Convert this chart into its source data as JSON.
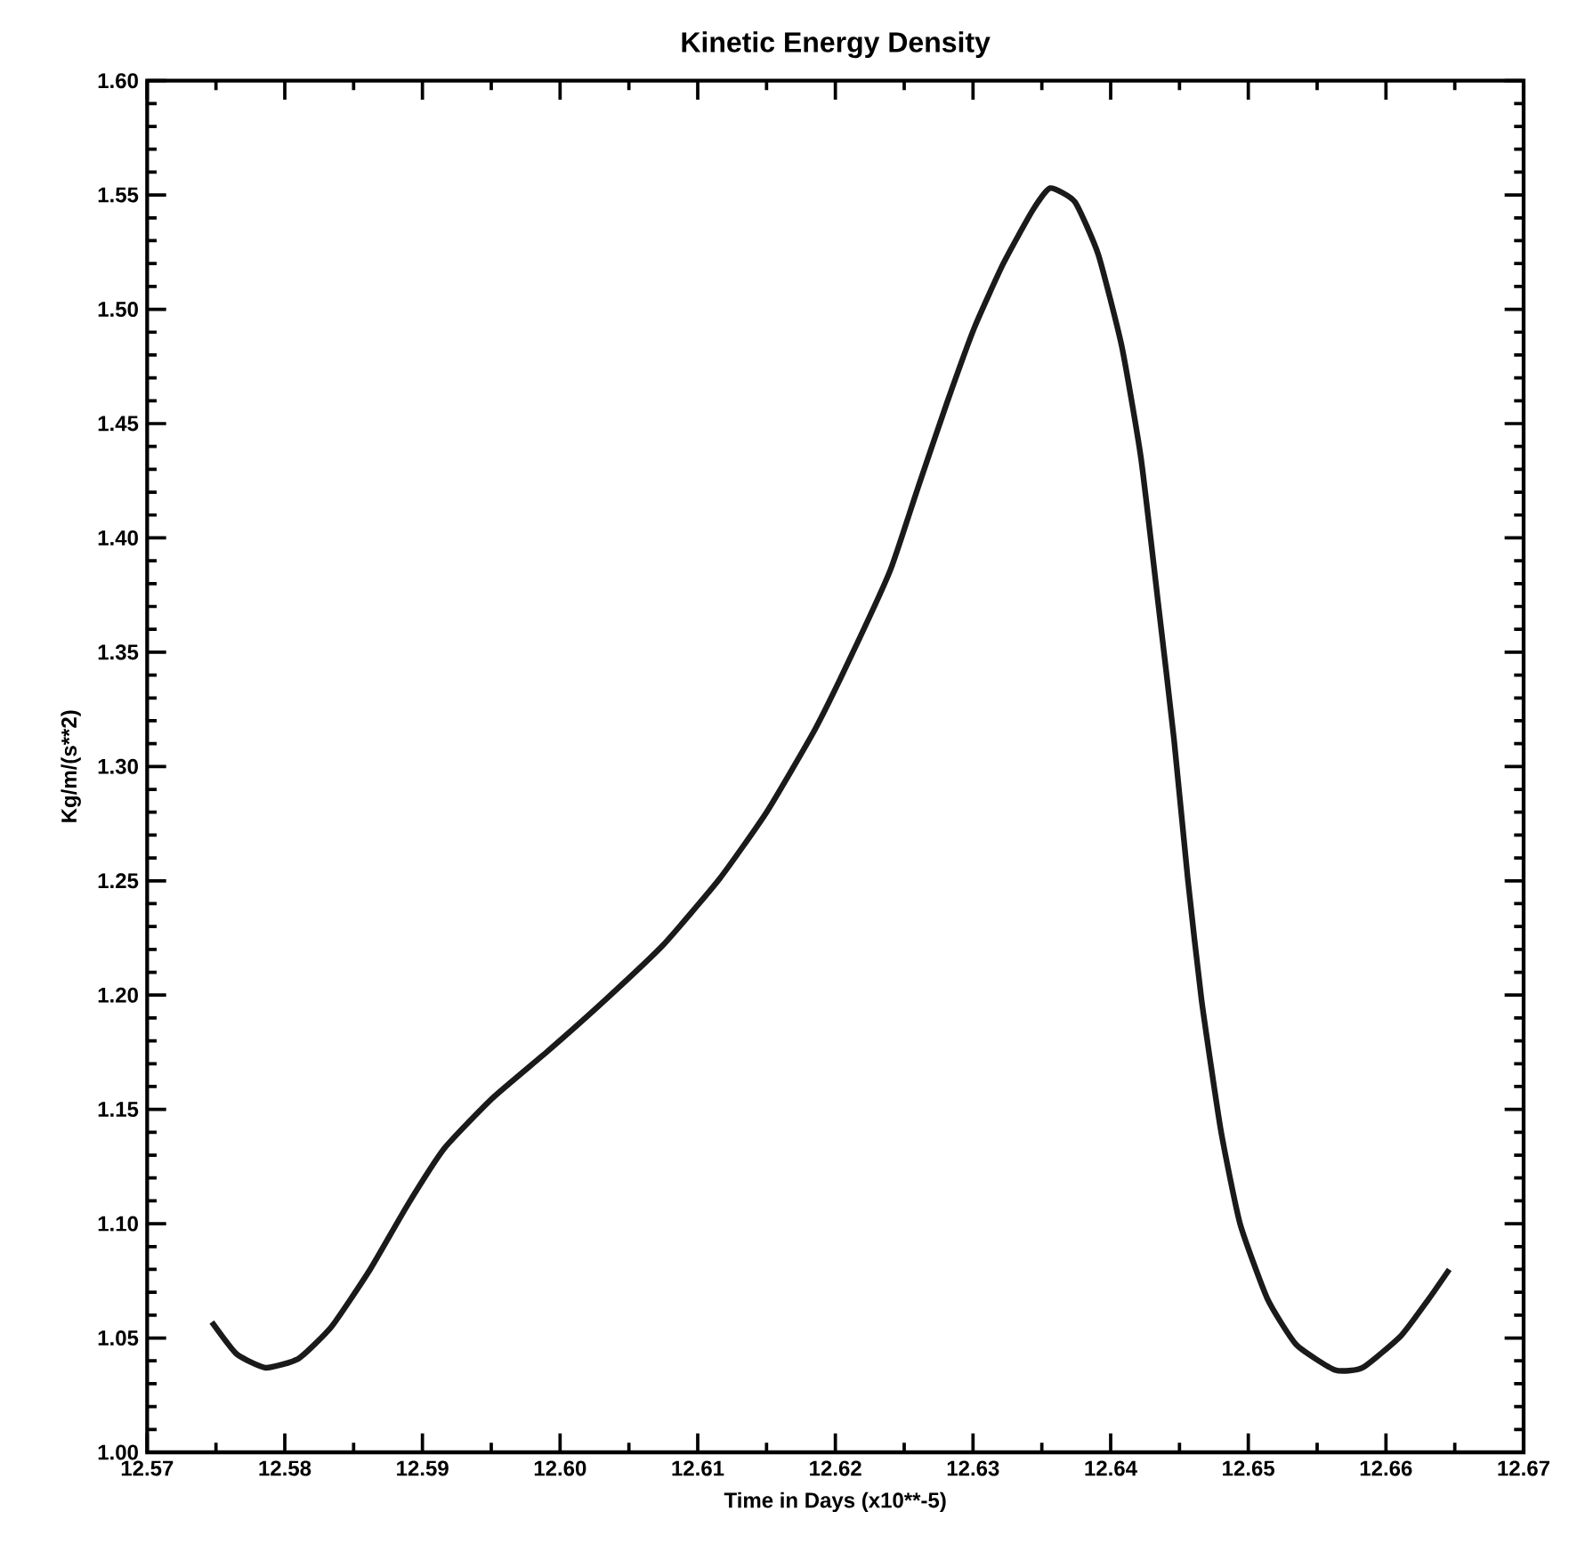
{
  "chart_data": {
    "type": "line",
    "title": "Kinetic Energy Density",
    "xlabel": "Time in Days (x10**-5)",
    "ylabel": "Kg/m/(s**2)",
    "xlim": [
      12.57,
      12.67
    ],
    "xticks": [
      12.57,
      12.58,
      12.59,
      {
        "value": 12.6,
        "label": "12.60"
      },
      12.61,
      12.62,
      12.63,
      12.64,
      12.65,
      12.66,
      12.67
    ],
    "ylim": [
      1.0,
      1.6
    ],
    "yticks": [
      {
        "value": 1.0,
        "label": "1.00"
      },
      1.05,
      {
        "value": 1.1,
        "label": "1.10"
      },
      1.15,
      {
        "value": 1.2,
        "label": "1.20"
      },
      1.25,
      {
        "value": 1.3,
        "label": "1.30"
      },
      1.35,
      {
        "value": 1.4,
        "label": "1.40"
      },
      1.45,
      {
        "value": 1.5,
        "label": "1.50"
      },
      1.55,
      {
        "value": 1.6,
        "label": "1.60"
      }
    ],
    "grid": false,
    "marker": "none",
    "line_style": "solid",
    "series": [
      {
        "color": "#1a1a1a",
        "x": [
          12.5747,
          12.5765,
          12.5786,
          12.581,
          12.5834,
          12.5862,
          12.5889,
          12.5916,
          12.5951,
          12.5992,
          12.6033,
          12.6075,
          12.6116,
          12.615,
          12.6185,
          12.6212,
          12.624,
          12.626,
          12.6281,
          12.6301,
          12.6322,
          12.6343,
          12.6356,
          12.6374,
          12.6391,
          12.6408,
          12.6422,
          12.6435,
          12.6446,
          12.6456,
          12.6466,
          12.648,
          12.6494,
          12.6514,
          12.6535,
          12.6563,
          12.6583,
          12.6611,
          12.6631,
          12.6646
        ],
        "values": [
          1.057,
          1.043,
          1.037,
          1.041,
          1.055,
          1.08,
          1.108,
          1.133,
          1.155,
          1.176,
          1.198,
          1.222,
          1.251,
          1.28,
          1.316,
          1.349,
          1.386,
          1.422,
          1.459,
          1.492,
          1.52,
          1.543,
          1.553,
          1.547,
          1.524,
          1.484,
          1.435,
          1.369,
          1.312,
          1.251,
          1.198,
          1.141,
          1.1,
          1.067,
          1.047,
          1.036,
          1.037,
          1.051,
          1.067,
          1.08
        ]
      }
    ]
  }
}
